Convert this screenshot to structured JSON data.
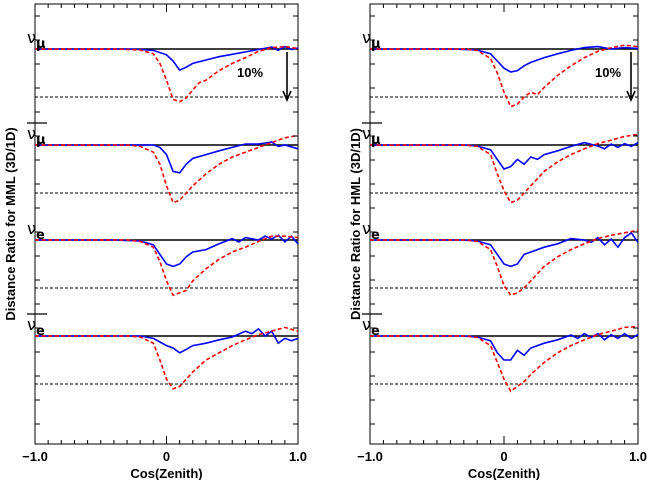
{
  "chart_data": [
    {
      "type": "line",
      "ylabel": "Distance Ratio for MML (3D/1D)",
      "xlabel": "Cos(Zenith)",
      "xlim": [
        -1.0,
        1.0
      ],
      "x_ticks": [
        "−1.0",
        "0",
        "1.0"
      ],
      "scale_annotation": "10%",
      "grid": false,
      "panels": [
        {
          "label": "νμ",
          "label_main": "ν",
          "label_sub": "μ",
          "antineutrino": false,
          "series": [
            {
              "name": "",
              "color": "#0000ff",
              "style": "solid",
              "x": [
                -1.0,
                -0.6,
                -0.4,
                -0.3,
                -0.2,
                -0.1,
                0.0,
                0.05,
                0.1,
                0.15,
                0.2,
                0.3,
                0.4,
                0.5,
                0.6,
                0.7,
                0.8,
                0.85,
                0.9,
                0.95,
                1.0
              ],
              "y": [
                0.0,
                0.0,
                0.0,
                0.0,
                -0.1,
                -0.3,
                -1.2,
                -2.5,
                -4.4,
                -3.8,
                -3.0,
                -2.3,
                -1.6,
                -1.1,
                -0.6,
                -0.1,
                0.4,
                -0.3,
                0.5,
                -0.1,
                0.2
              ]
            },
            {
              "name": "",
              "color": "#ff0000",
              "style": "dashed",
              "x": [
                -1.0,
                -0.4,
                -0.2,
                -0.1,
                -0.05,
                0.0,
                0.05,
                0.1,
                0.15,
                0.2,
                0.25,
                0.3,
                0.4,
                0.5,
                0.6,
                0.7,
                0.8,
                0.9,
                1.0
              ],
              "y": [
                0.0,
                0.0,
                -0.2,
                -1.0,
                -3.0,
                -6.5,
                -10.5,
                -11.0,
                -10.2,
                -8.5,
                -7.0,
                -6.5,
                -4.5,
                -3.0,
                -1.8,
                -0.5,
                0.3,
                0.5,
                0.1
              ]
            }
          ]
        },
        {
          "label": "ν̅μ",
          "label_main": "ν",
          "label_sub": "μ",
          "antineutrino": true,
          "series": [
            {
              "name": "",
              "color": "#0000ff",
              "style": "solid",
              "x": [
                -1.0,
                -0.4,
                -0.2,
                -0.1,
                -0.05,
                0.0,
                0.05,
                0.1,
                0.15,
                0.2,
                0.3,
                0.4,
                0.5,
                0.6,
                0.7,
                0.8,
                0.85,
                0.9,
                1.0
              ],
              "y": [
                0.0,
                0.0,
                0.0,
                0.0,
                -0.5,
                -2.0,
                -5.5,
                -5.8,
                -4.0,
                -2.8,
                -2.0,
                -1.2,
                -0.5,
                0.2,
                0.2,
                0.6,
                -0.3,
                0.0,
                -0.8
              ]
            },
            {
              "name": "",
              "color": "#ff0000",
              "style": "dashed",
              "x": [
                -1.0,
                -0.3,
                -0.2,
                -0.1,
                -0.05,
                0.0,
                0.05,
                0.1,
                0.15,
                0.2,
                0.3,
                0.4,
                0.5,
                0.6,
                0.7,
                0.8,
                0.9,
                1.0
              ],
              "y": [
                0.0,
                0.0,
                -0.3,
                -1.5,
                -4.0,
                -8.5,
                -12.0,
                -11.5,
                -10.0,
                -8.5,
                -6.0,
                -4.0,
                -2.5,
                -1.5,
                -0.5,
                0.5,
                1.5,
                2.0
              ]
            }
          ]
        },
        {
          "label": "νe",
          "label_main": "ν",
          "label_sub": "e",
          "antineutrino": false,
          "series": [
            {
              "name": "",
              "color": "#0000ff",
              "style": "solid",
              "x": [
                -1.0,
                -0.4,
                -0.2,
                -0.1,
                -0.05,
                0.0,
                0.05,
                0.1,
                0.15,
                0.2,
                0.3,
                0.4,
                0.5,
                0.55,
                0.6,
                0.7,
                0.75,
                0.8,
                0.85,
                0.9,
                0.95,
                1.0
              ],
              "y": [
                0.0,
                0.0,
                -0.2,
                -1.0,
                -3.0,
                -5.0,
                -5.5,
                -5.0,
                -3.5,
                -2.5,
                -2.0,
                -0.8,
                0.3,
                -0.4,
                0.5,
                0.0,
                0.8,
                0.2,
                1.0,
                -0.4,
                0.8,
                -0.8
              ]
            },
            {
              "name": "",
              "color": "#ff0000",
              "style": "dashed",
              "x": [
                -1.0,
                -0.3,
                -0.2,
                -0.1,
                -0.05,
                0.0,
                0.05,
                0.1,
                0.15,
                0.2,
                0.3,
                0.4,
                0.5,
                0.6,
                0.7,
                0.8,
                0.9,
                1.0
              ],
              "y": [
                0.0,
                0.0,
                -0.3,
                -1.5,
                -4.5,
                -8.5,
                -11.5,
                -11.0,
                -10.5,
                -8.5,
                -6.0,
                -4.0,
                -2.5,
                -1.5,
                -0.3,
                0.8,
                0.8,
                0.5
              ]
            }
          ]
        },
        {
          "label": "ν̅e",
          "label_main": "ν",
          "label_sub": "e",
          "antineutrino": true,
          "series": [
            {
              "name": "",
              "color": "#0000ff",
              "style": "solid",
              "x": [
                -1.0,
                -0.2,
                -0.1,
                0.0,
                0.05,
                0.1,
                0.15,
                0.2,
                0.3,
                0.4,
                0.5,
                0.6,
                0.65,
                0.7,
                0.75,
                0.8,
                0.85,
                0.9,
                0.95,
                1.0
              ],
              "y": [
                0.0,
                0.0,
                -0.5,
                -2.0,
                -2.5,
                -3.5,
                -2.8,
                -2.0,
                -1.5,
                -0.8,
                -0.2,
                1.0,
                0.5,
                1.5,
                0.0,
                1.0,
                -1.5,
                -0.5,
                -1.0,
                -0.5
              ]
            },
            {
              "name": "",
              "color": "#ff0000",
              "style": "dashed",
              "x": [
                -1.0,
                -0.3,
                -0.2,
                -0.1,
                -0.05,
                0.0,
                0.05,
                0.1,
                0.15,
                0.2,
                0.3,
                0.4,
                0.5,
                0.6,
                0.7,
                0.8,
                0.9,
                1.0
              ],
              "y": [
                0.0,
                0.0,
                -0.2,
                -1.5,
                -5.0,
                -9.0,
                -11.0,
                -10.5,
                -9.0,
                -7.5,
                -5.0,
                -3.5,
                -2.0,
                -0.8,
                0.3,
                1.0,
                1.8,
                1.0
              ]
            }
          ]
        }
      ]
    },
    {
      "type": "line",
      "ylabel": "Distance Ratio for HML (3D/1D)",
      "xlabel": "Cos(Zenith)",
      "xlim": [
        -1.0,
        1.0
      ],
      "x_ticks": [
        "−1.0",
        "0",
        "1.0"
      ],
      "scale_annotation": "10%",
      "grid": false,
      "panels": [
        {
          "label": "νμ",
          "label_main": "ν",
          "label_sub": "μ",
          "antineutrino": false,
          "series": [
            {
              "name": "",
              "color": "#0000ff",
              "style": "solid",
              "x": [
                -1.0,
                -0.4,
                -0.2,
                -0.1,
                -0.05,
                0.0,
                0.05,
                0.1,
                0.15,
                0.2,
                0.3,
                0.4,
                0.5,
                0.6,
                0.7,
                0.8,
                0.9,
                1.0
              ],
              "y": [
                0.0,
                0.0,
                -0.2,
                -1.0,
                -2.5,
                -4.0,
                -4.8,
                -4.5,
                -3.5,
                -2.8,
                -1.8,
                -1.0,
                -0.3,
                0.3,
                0.5,
                0.0,
                0.3,
                0.1
              ]
            },
            {
              "name": "",
              "color": "#ff0000",
              "style": "dashed",
              "x": [
                -1.0,
                -0.3,
                -0.2,
                -0.1,
                -0.05,
                0.0,
                0.05,
                0.1,
                0.15,
                0.2,
                0.25,
                0.3,
                0.4,
                0.5,
                0.6,
                0.7,
                0.8,
                0.9,
                1.0
              ],
              "y": [
                0.0,
                0.0,
                -0.3,
                -2.0,
                -5.0,
                -9.0,
                -12.0,
                -11.5,
                -10.0,
                -9.0,
                -9.5,
                -8.0,
                -5.5,
                -3.5,
                -1.8,
                -0.5,
                0.3,
                0.8,
                0.5
              ]
            }
          ]
        },
        {
          "label": "ν̅μ",
          "label_main": "ν",
          "label_sub": "μ",
          "antineutrino": true,
          "series": [
            {
              "name": "",
              "color": "#0000ff",
              "style": "solid",
              "x": [
                -1.0,
                -0.3,
                -0.2,
                -0.1,
                -0.05,
                0.0,
                0.05,
                0.1,
                0.15,
                0.2,
                0.25,
                0.3,
                0.4,
                0.5,
                0.6,
                0.7,
                0.75,
                0.8,
                0.85,
                0.9,
                0.95,
                1.0
              ],
              "y": [
                0.0,
                0.0,
                -0.2,
                -1.0,
                -3.0,
                -5.0,
                -4.5,
                -3.0,
                -4.0,
                -2.5,
                -3.0,
                -2.0,
                -1.2,
                -0.3,
                0.5,
                -0.2,
                -0.8,
                0.2,
                -0.5,
                0.3,
                -0.3,
                0.5
              ]
            },
            {
              "name": "",
              "color": "#ff0000",
              "style": "dashed",
              "x": [
                -1.0,
                -0.3,
                -0.2,
                -0.1,
                -0.05,
                0.0,
                0.05,
                0.1,
                0.15,
                0.2,
                0.3,
                0.4,
                0.5,
                0.6,
                0.7,
                0.8,
                0.9,
                1.0
              ],
              "y": [
                0.0,
                0.0,
                -0.3,
                -2.0,
                -6.0,
                -9.5,
                -12.0,
                -11.5,
                -10.0,
                -8.5,
                -5.5,
                -3.5,
                -2.0,
                -0.8,
                0.3,
                1.0,
                1.8,
                2.2
              ]
            }
          ]
        },
        {
          "label": "νe",
          "label_main": "ν",
          "label_sub": "e",
          "antineutrino": false,
          "series": [
            {
              "name": "",
              "color": "#0000ff",
              "style": "solid",
              "x": [
                -1.0,
                -0.3,
                -0.2,
                -0.1,
                -0.05,
                0.0,
                0.05,
                0.1,
                0.15,
                0.2,
                0.3,
                0.4,
                0.5,
                0.6,
                0.65,
                0.7,
                0.75,
                0.8,
                0.85,
                0.9,
                0.95,
                1.0
              ],
              "y": [
                0.0,
                0.0,
                -0.2,
                -1.0,
                -3.0,
                -5.0,
                -5.5,
                -5.0,
                -3.0,
                -2.5,
                -1.5,
                -0.8,
                0.3,
                0.0,
                -0.5,
                0.5,
                -1.0,
                0.2,
                -1.5,
                0.5,
                1.5,
                -0.5
              ]
            },
            {
              "name": "",
              "color": "#ff0000",
              "style": "dashed",
              "x": [
                -1.0,
                -0.3,
                -0.2,
                -0.1,
                -0.05,
                0.0,
                0.05,
                0.1,
                0.15,
                0.2,
                0.3,
                0.4,
                0.5,
                0.6,
                0.7,
                0.8,
                0.9,
                1.0
              ],
              "y": [
                0.0,
                0.0,
                -0.3,
                -2.0,
                -5.5,
                -9.5,
                -11.5,
                -11.0,
                -10.0,
                -8.5,
                -5.5,
                -3.5,
                -2.0,
                -0.8,
                0.3,
                1.0,
                1.5,
                2.0
              ]
            }
          ]
        },
        {
          "label": "ν̅e",
          "label_main": "ν",
          "label_sub": "e",
          "antineutrino": true,
          "series": [
            {
              "name": "",
              "color": "#0000ff",
              "style": "solid",
              "x": [
                -1.0,
                -0.3,
                -0.2,
                -0.1,
                -0.05,
                0.0,
                0.05,
                0.1,
                0.15,
                0.2,
                0.3,
                0.4,
                0.5,
                0.55,
                0.6,
                0.65,
                0.7,
                0.75,
                0.8,
                0.85,
                0.9,
                0.95,
                1.0
              ],
              "y": [
                0.0,
                0.0,
                -0.2,
                -1.0,
                -3.5,
                -5.0,
                -5.0,
                -3.0,
                -4.0,
                -2.5,
                -1.5,
                -0.8,
                0.2,
                -0.5,
                0.5,
                -0.3,
                0.5,
                -0.8,
                0.3,
                -0.5,
                0.5,
                -0.5,
                0.3
              ]
            },
            {
              "name": "",
              "color": "#ff0000",
              "style": "dashed",
              "x": [
                -1.0,
                -0.3,
                -0.2,
                -0.1,
                -0.05,
                0.0,
                0.05,
                0.1,
                0.15,
                0.2,
                0.3,
                0.4,
                0.5,
                0.6,
                0.7,
                0.8,
                0.9,
                1.0
              ],
              "y": [
                0.0,
                0.0,
                -0.3,
                -2.0,
                -5.5,
                -9.0,
                -11.5,
                -10.5,
                -9.5,
                -8.0,
                -5.5,
                -3.5,
                -2.0,
                -0.8,
                0.3,
                1.0,
                1.8,
                2.0
              ]
            }
          ]
        }
      ]
    }
  ]
}
